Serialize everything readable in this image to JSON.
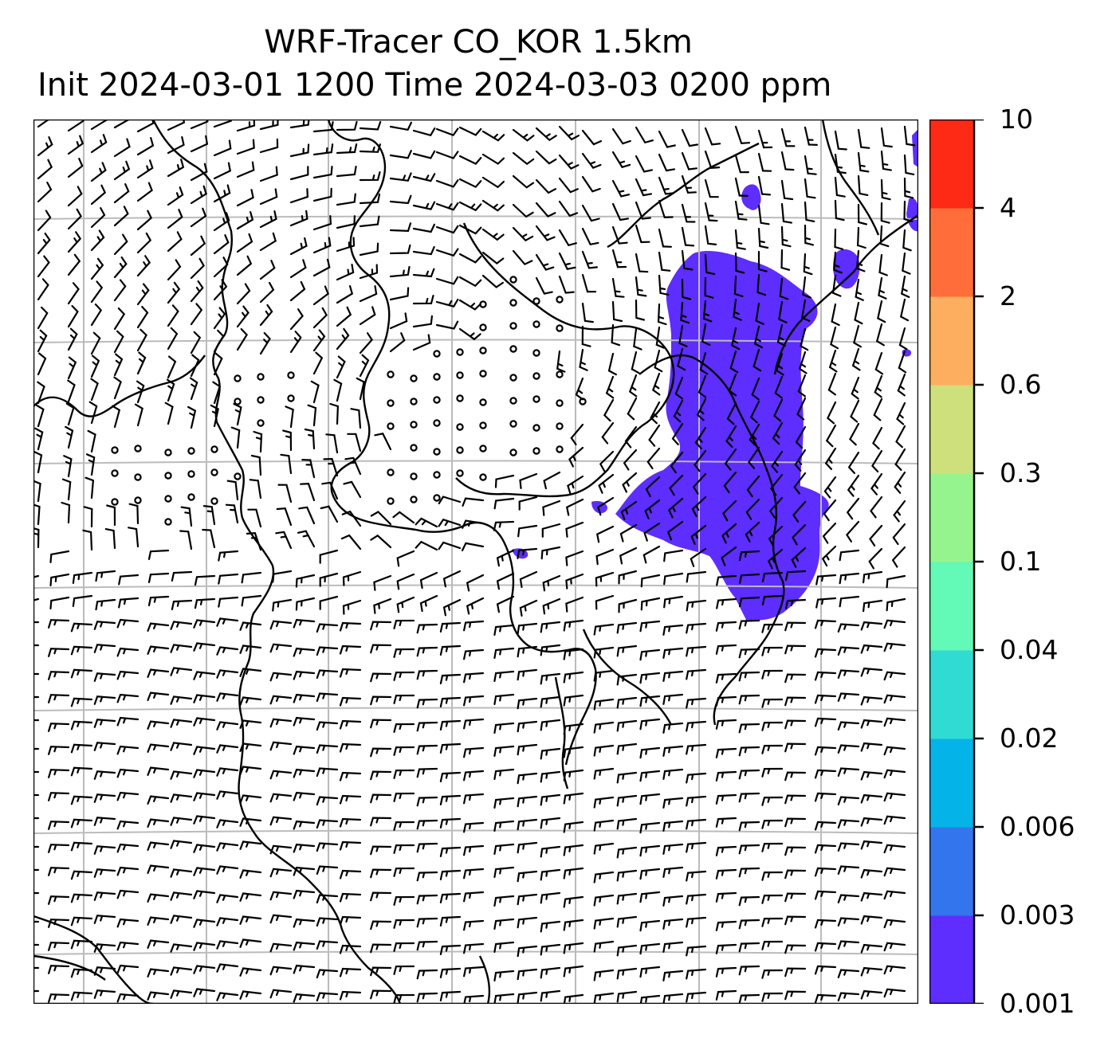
{
  "title": {
    "line1": "WRF-Tracer CO_KOR 1.5km",
    "line2": "Init 2024-03-01 1200 Time 2024-03-03 0200 ppm"
  },
  "colorbar": {
    "levels": [
      "0.001",
      "0.003",
      "0.006",
      "0.02",
      "0.04",
      "0.1",
      "0.3",
      "0.6",
      "2",
      "4",
      "10"
    ],
    "colors": [
      "#5e2dff",
      "#3375ec",
      "#04b4e8",
      "#30dbd4",
      "#63f9b6",
      "#96f48f",
      "#cde07c",
      "#fdae5f",
      "#ff6d3a",
      "#ff2a16"
    ]
  },
  "plume_color": "#5e2dff",
  "map": {
    "barb_color": "#000000",
    "coastline_color": "#000000",
    "grid_color": "#bbbbbb",
    "features": [
      "wind-barbs",
      "calm-circles",
      "coastlines",
      "graticule",
      "tracer-plume"
    ]
  }
}
